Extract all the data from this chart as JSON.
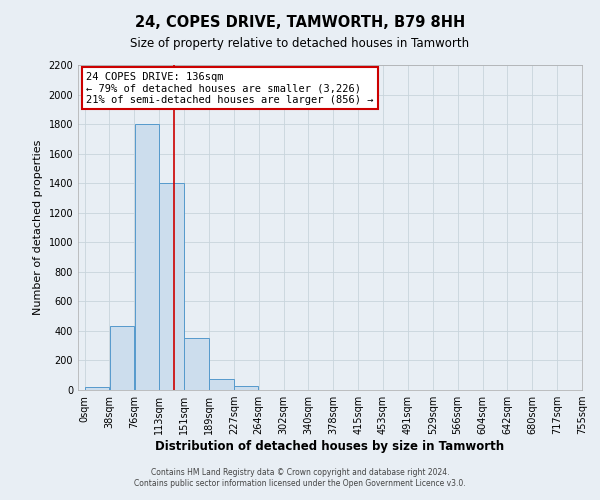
{
  "title": "24, COPES DRIVE, TAMWORTH, B79 8HH",
  "subtitle": "Size of property relative to detached houses in Tamworth",
  "xlabel": "Distribution of detached houses by size in Tamworth",
  "ylabel": "Number of detached properties",
  "bin_labels": [
    "0sqm",
    "38sqm",
    "76sqm",
    "113sqm",
    "151sqm",
    "189sqm",
    "227sqm",
    "264sqm",
    "302sqm",
    "340sqm",
    "378sqm",
    "415sqm",
    "453sqm",
    "491sqm",
    "529sqm",
    "566sqm",
    "604sqm",
    "642sqm",
    "680sqm",
    "717sqm",
    "755sqm"
  ],
  "bin_counts": [
    20,
    430,
    1800,
    1400,
    350,
    75,
    25,
    0,
    0,
    0,
    0,
    0,
    0,
    0,
    0,
    0,
    0,
    0,
    0,
    0
  ],
  "bar_color": "#ccdded",
  "bar_edge_color": "#5599cc",
  "property_size": 136,
  "annotation_title": "24 COPES DRIVE: 136sqm",
  "annotation_line1": "← 79% of detached houses are smaller (3,226)",
  "annotation_line2": "21% of semi-detached houses are larger (856) →",
  "annotation_box_color": "#ffffff",
  "annotation_box_edge_color": "#cc0000",
  "vline_color": "#cc0000",
  "ylim": [
    0,
    2200
  ],
  "yticks": [
    0,
    200,
    400,
    600,
    800,
    1000,
    1200,
    1400,
    1600,
    1800,
    2000,
    2200
  ],
  "footer1": "Contains HM Land Registry data © Crown copyright and database right 2024.",
  "footer2": "Contains public sector information licensed under the Open Government Licence v3.0.",
  "bg_color": "#e8eef4",
  "plot_bg_color": "#e8eef4",
  "grid_color": "#c8d4dc"
}
